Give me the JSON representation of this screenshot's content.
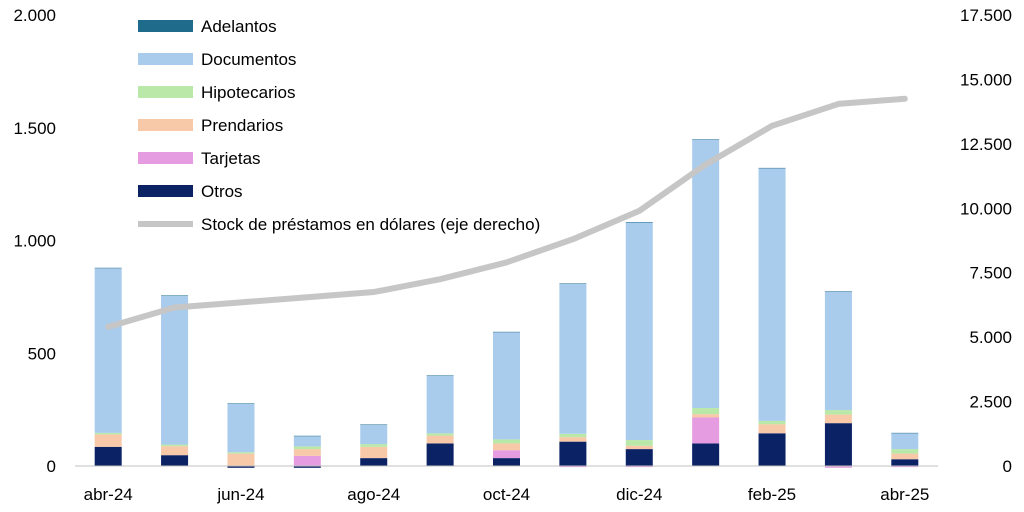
{
  "chart_data": {
    "type": "bar",
    "stacked": true,
    "categories": [
      "abr-24",
      "may-24",
      "jun-24",
      "jul-24",
      "ago-24",
      "sep-24",
      "oct-24",
      "nov-24",
      "dic-24",
      "ene-25",
      "feb-25",
      "mar-25",
      "abr-25"
    ],
    "x_tick_labels": [
      "abr-24",
      "",
      "jun-24",
      "",
      "ago-24",
      "",
      "oct-24",
      "",
      "dic-24",
      "",
      "feb-25",
      "",
      "abr-25"
    ],
    "series": [
      {
        "name": "Otros",
        "color": "#0b2265",
        "values": [
          85,
          48,
          -8,
          -8,
          35,
          100,
          35,
          108,
          75,
          100,
          145,
          190,
          30
        ]
      },
      {
        "name": "Tarjetas",
        "color": "#e59ce0",
        "values": [
          0,
          0,
          0,
          45,
          0,
          0,
          35,
          -5,
          -5,
          115,
          0,
          -8,
          -5
        ]
      },
      {
        "name": "Prendarios",
        "color": "#f8c9a8",
        "values": [
          55,
          40,
          55,
          30,
          50,
          35,
          30,
          20,
          15,
          15,
          40,
          38,
          25
        ]
      },
      {
        "name": "Hipotecarios",
        "color": "#b9e8a8",
        "values": [
          7,
          7,
          6,
          12,
          12,
          10,
          18,
          15,
          25,
          27,
          15,
          20,
          20
        ]
      },
      {
        "name": "Documentos",
        "color": "#a9cbec",
        "values": [
          730,
          660,
          215,
          45,
          85,
          255,
          475,
          665,
          965,
          1190,
          1120,
          525,
          70
        ]
      },
      {
        "name": "Adelantos",
        "color": "#1f6b8c",
        "values": [
          2,
          2,
          2,
          2,
          2,
          2,
          2,
          2,
          2,
          2,
          2,
          2,
          2
        ]
      }
    ],
    "line_series": {
      "name": "Stock de préstamos en dólares (eje derecho)",
      "color": "#c6c6c6",
      "axis": "right",
      "values": [
        5400,
        6150,
        6350,
        6550,
        6750,
        7250,
        7900,
        8800,
        9900,
        11700,
        13200,
        14050,
        14250
      ]
    },
    "y_left": {
      "ylim": [
        0,
        2000
      ],
      "ticks": [
        "0",
        "500",
        "1.000",
        "1.500",
        "2.000"
      ],
      "tick_values": [
        0,
        500,
        1000,
        1500,
        2000
      ]
    },
    "y_right": {
      "ylim": [
        0,
        17500
      ],
      "ticks": [
        "0",
        "2.500",
        "5.000",
        "7.500",
        "10.000",
        "12.500",
        "15.000",
        "17.500"
      ],
      "tick_values": [
        0,
        2500,
        5000,
        7500,
        10000,
        12500,
        15000,
        17500
      ]
    },
    "legend": {
      "position": "top-left",
      "entries": [
        {
          "label": "Adelantos",
          "color": "#1f6b8c",
          "kind": "box"
        },
        {
          "label": "Documentos",
          "color": "#a9cbec",
          "kind": "box"
        },
        {
          "label": "Hipotecarios",
          "color": "#b9e8a8",
          "kind": "box"
        },
        {
          "label": "Prendarios",
          "color": "#f8c9a8",
          "kind": "box"
        },
        {
          "label": "Tarjetas",
          "color": "#e59ce0",
          "kind": "box"
        },
        {
          "label": "Otros",
          "color": "#0b2265",
          "kind": "box"
        },
        {
          "label": "Stock de préstamos en dólares (eje derecho)",
          "color": "#c6c6c6",
          "kind": "line"
        }
      ]
    },
    "grid": false,
    "title": "",
    "xlabel": "",
    "ylabel": ""
  }
}
